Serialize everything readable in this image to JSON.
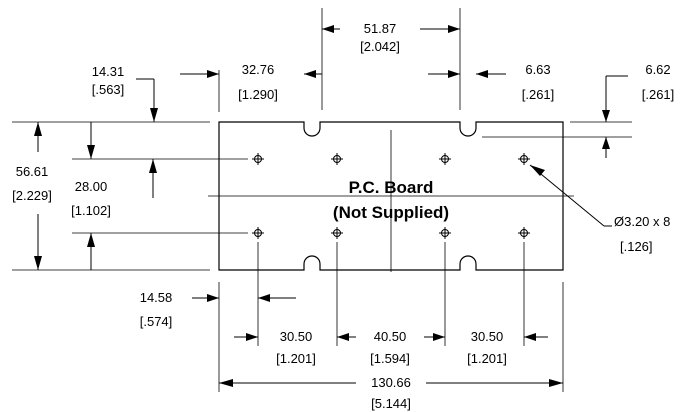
{
  "board": {
    "title_line1": "P.C. Board",
    "title_line2": "(Not Supplied)"
  },
  "dimensions": {
    "slot_spacing": {
      "mm": "51.87",
      "inch": "[2.042]"
    },
    "top_edge_to_hole": {
      "mm": "14.31",
      "inch": "[.563]"
    },
    "left_to_slot": {
      "mm": "32.76",
      "inch": "[1.290]"
    },
    "slot_width": {
      "mm": "6.63",
      "inch": "[.261]"
    },
    "slot_depth": {
      "mm": "6.62",
      "inch": "[.261]"
    },
    "board_height": {
      "mm": "56.61",
      "inch": "[2.229]"
    },
    "hole_row_spacing": {
      "mm": "28.00",
      "inch": "[1.102]"
    },
    "hole_diameter": {
      "mm": "Ø3.20 x 8",
      "inch": "[.126]"
    },
    "left_edge_to_hole": {
      "mm": "14.58",
      "inch": "[.574]"
    },
    "hole_pitch_left": {
      "mm": "30.50",
      "inch": "[1.201]"
    },
    "hole_pitch_center": {
      "mm": "40.50",
      "inch": "[1.594]"
    },
    "hole_pitch_right": {
      "mm": "30.50",
      "inch": "[1.201]"
    },
    "board_width": {
      "mm": "130.66",
      "inch": "[5.144]"
    }
  }
}
